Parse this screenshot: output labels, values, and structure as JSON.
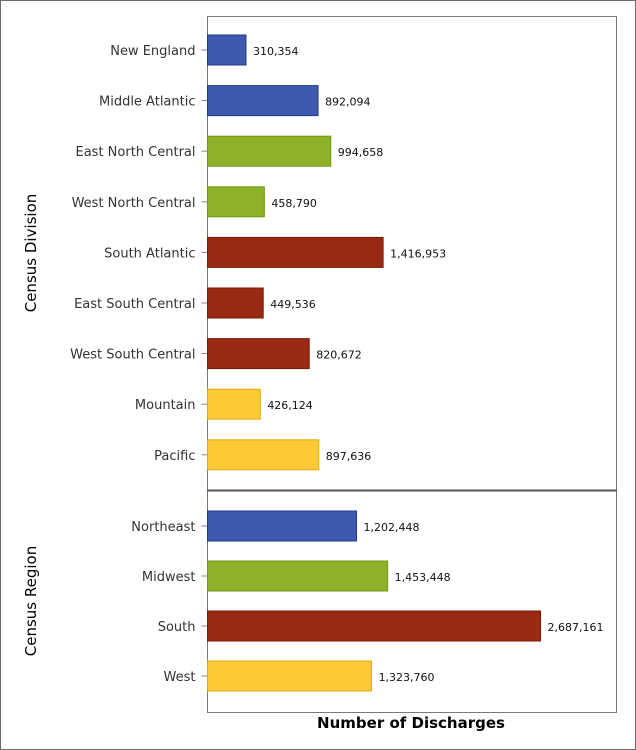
{
  "chart_data": [
    {
      "type": "bar",
      "orientation": "horizontal",
      "ylabel": "Census Division",
      "categories": [
        "New England",
        "Middle Atlantic",
        "East North Central",
        "West North Central",
        "South Atlantic",
        "East South Central",
        "West South Central",
        "Mountain",
        "Pacific"
      ],
      "values": [
        310354,
        892094,
        994658,
        458790,
        1416953,
        449536,
        820672,
        426124,
        897636
      ],
      "data_labels": [
        "310,354",
        "892,094",
        "994,658",
        "458,790",
        "1,416,953",
        "449,536",
        "820,672",
        "426,124",
        "897,636"
      ],
      "colors": [
        "#3d5aae",
        "#3d5aae",
        "#8db22a",
        "#8db22a",
        "#9a2914",
        "#9a2914",
        "#9a2914",
        "#fdc936",
        "#fdc936"
      ]
    },
    {
      "type": "bar",
      "orientation": "horizontal",
      "ylabel": "Census Region",
      "xlabel": "Number of Discharges",
      "categories": [
        "Northeast",
        "Midwest",
        "South",
        "West"
      ],
      "values": [
        1202448,
        1453448,
        2687161,
        1323760
      ],
      "data_labels": [
        "1,202,448",
        "1,453,448",
        "2,687,161",
        "1,323,760"
      ],
      "colors": [
        "#3d5aae",
        "#8db22a",
        "#9a2914",
        "#fdc936"
      ]
    }
  ],
  "xlim": [
    0,
    3300000
  ],
  "grid": false,
  "edge_colors": {
    "#3d5aae": "#1f3a8a",
    "#8db22a": "#6e9a10",
    "#9a2914": "#7a1a08",
    "#fdc936": "#e0ab10"
  }
}
